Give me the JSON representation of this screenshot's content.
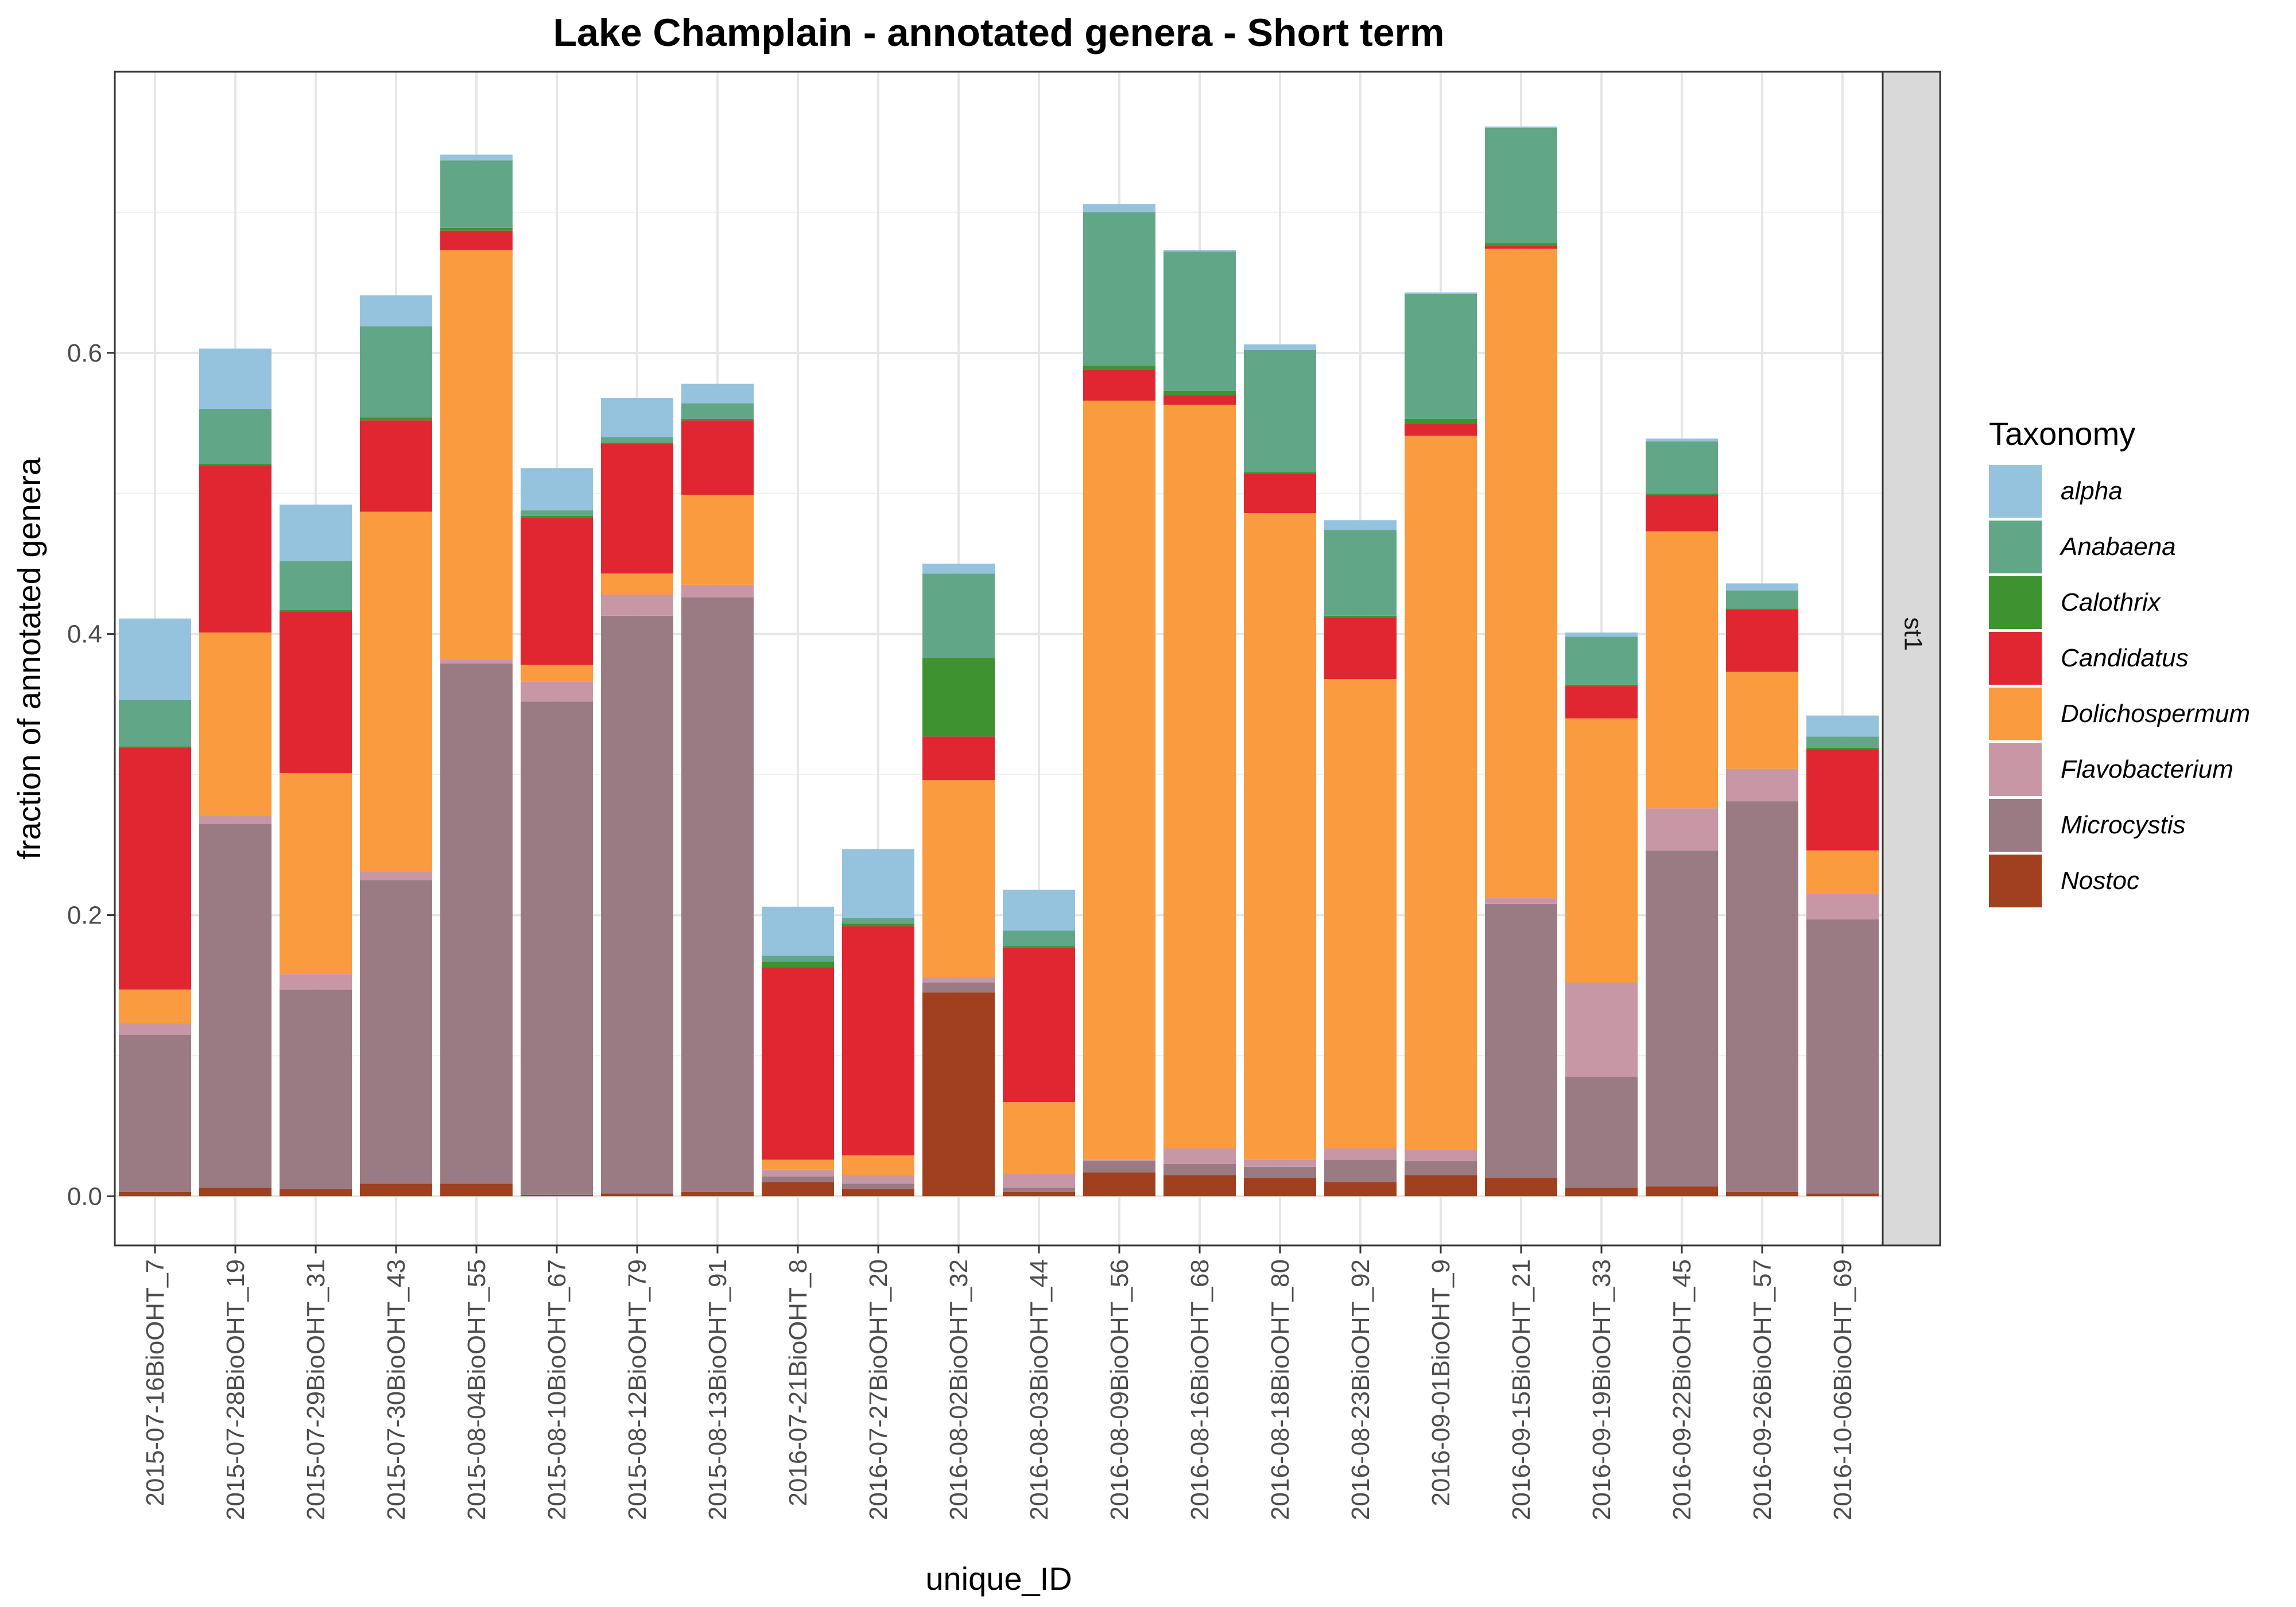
{
  "chart_data": {
    "type": "bar",
    "stacked": true,
    "title": "Lake Champlain - annotated genera - Short term",
    "xlabel": "unique_ID",
    "ylabel": "fraction of annotated genera",
    "ylim": [
      -0.035,
      0.8
    ],
    "yticks": [
      0.0,
      0.2,
      0.4,
      0.6
    ],
    "ytick_labels": [
      "0.0",
      "0.2",
      "0.4",
      "0.6"
    ],
    "grid": true,
    "facet_label": "st1",
    "legend": {
      "title": "Taxonomy",
      "position": "right"
    },
    "categories": [
      "2015-07-16BioOHT_7",
      "2015-07-28BioOHT_19",
      "2015-07-29BioOHT_31",
      "2015-07-30BioOHT_43",
      "2015-08-04BioOHT_55",
      "2015-08-10BioOHT_67",
      "2015-08-12BioOHT_79",
      "2015-08-13BioOHT_91",
      "2016-07-21BioOHT_8",
      "2016-07-27BioOHT_20",
      "2016-08-02BioOHT_32",
      "2016-08-03BioOHT_44",
      "2016-08-09BioOHT_56",
      "2016-08-16BioOHT_68",
      "2016-08-18BioOHT_80",
      "2016-08-23BioOHT_92",
      "2016-09-01BioOHT_9",
      "2016-09-15BioOHT_21",
      "2016-09-19BioOHT_33",
      "2016-09-22BioOHT_45",
      "2016-09-26BioOHT_57",
      "2016-10-06BioOHT_69"
    ],
    "series": [
      {
        "name": "Nostoc",
        "color": "#A0401F",
        "values": [
          0.003,
          0.006,
          0.005,
          0.009,
          0.009,
          0.001,
          0.002,
          0.003,
          0.01,
          0.005,
          0.145,
          0.003,
          0.017,
          0.015,
          0.013,
          0.01,
          0.015,
          0.013,
          0.006,
          0.007,
          0.003,
          0.002
        ]
      },
      {
        "name": "Microcystis",
        "color": "#9A7B83",
        "values": [
          0.112,
          0.259,
          0.142,
          0.216,
          0.37,
          0.351,
          0.411,
          0.423,
          0.004,
          0.004,
          0.007,
          0.003,
          0.008,
          0.008,
          0.008,
          0.016,
          0.01,
          0.195,
          0.079,
          0.239,
          0.278,
          0.195
        ]
      },
      {
        "name": "Flavobacterium",
        "color": "#C897A5",
        "values": [
          0.008,
          0.006,
          0.011,
          0.006,
          0.003,
          0.014,
          0.015,
          0.009,
          0.005,
          0.006,
          0.004,
          0.01,
          0.001,
          0.011,
          0.005,
          0.008,
          0.008,
          0.004,
          0.067,
          0.03,
          0.023,
          0.018
        ]
      },
      {
        "name": "Dolichospermum",
        "color": "#F99B3E",
        "values": [
          0.024,
          0.13,
          0.143,
          0.256,
          0.291,
          0.012,
          0.015,
          0.064,
          0.007,
          0.014,
          0.14,
          0.051,
          0.54,
          0.529,
          0.46,
          0.334,
          0.508,
          0.462,
          0.188,
          0.197,
          0.069,
          0.031
        ]
      },
      {
        "name": "Candidatus",
        "color": "#E02731",
        "values": [
          0.172,
          0.119,
          0.115,
          0.065,
          0.014,
          0.105,
          0.092,
          0.053,
          0.137,
          0.163,
          0.031,
          0.11,
          0.022,
          0.007,
          0.028,
          0.044,
          0.009,
          0.002,
          0.023,
          0.026,
          0.044,
          0.072
        ]
      },
      {
        "name": "Calothrix",
        "color": "#3E9230",
        "values": [
          0.001,
          0.001,
          0.001,
          0.002,
          0.002,
          0.001,
          0.001,
          0.001,
          0.004,
          0.002,
          0.056,
          0.001,
          0.003,
          0.003,
          0.001,
          0.001,
          0.003,
          0.002,
          0.001,
          0.001,
          0.001,
          0.001
        ]
      },
      {
        "name": "Anabaena",
        "color": "#62A688",
        "values": [
          0.033,
          0.039,
          0.035,
          0.065,
          0.048,
          0.004,
          0.004,
          0.011,
          0.004,
          0.004,
          0.06,
          0.011,
          0.109,
          0.099,
          0.087,
          0.061,
          0.089,
          0.082,
          0.034,
          0.037,
          0.013,
          0.008
        ]
      },
      {
        "name": "alpha",
        "color": "#95C3DE",
        "values": [
          0.058,
          0.043,
          0.04,
          0.022,
          0.004,
          0.03,
          0.028,
          0.014,
          0.035,
          0.049,
          0.007,
          0.029,
          0.006,
          0.001,
          0.004,
          0.007,
          0.001,
          0.001,
          0.003,
          0.002,
          0.005,
          0.015
        ]
      }
    ],
    "legend_order": [
      "alpha",
      "Anabaena",
      "Calothrix",
      "Candidatus",
      "Dolichospermum",
      "Flavobacterium",
      "Microcystis",
      "Nostoc"
    ]
  }
}
